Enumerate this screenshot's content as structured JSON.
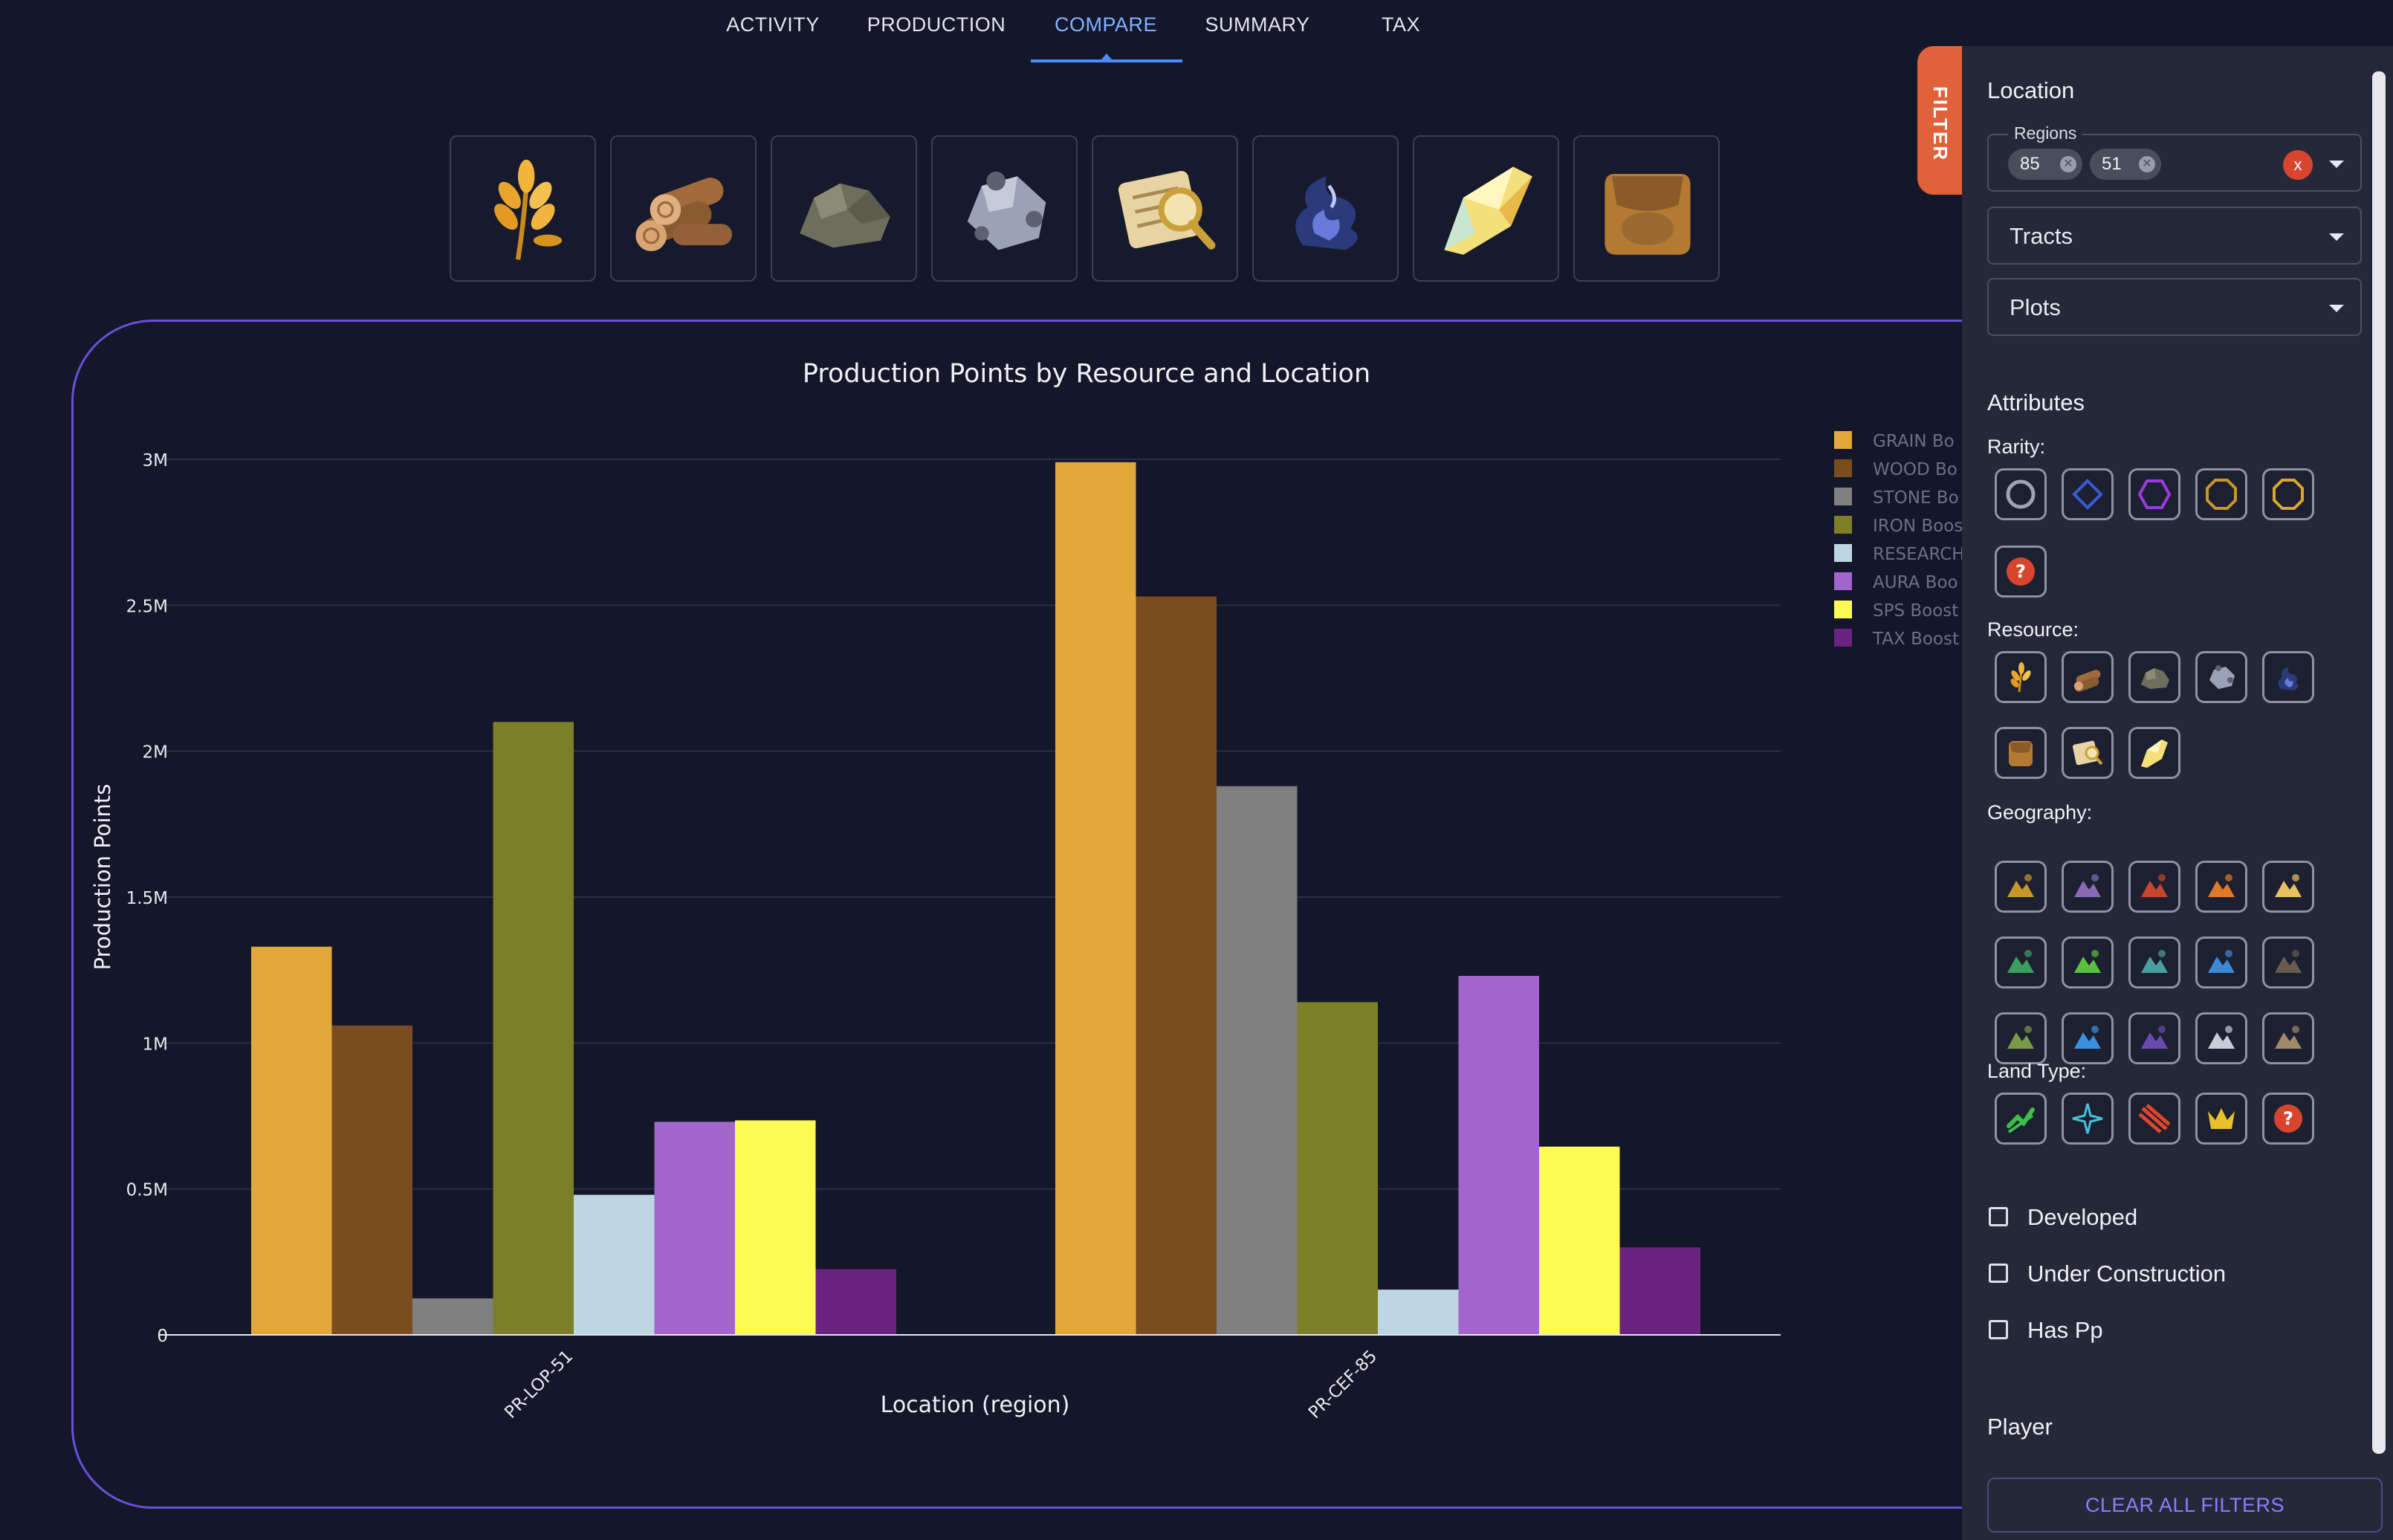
{
  "tabs": [
    {
      "label": "ACTIVITY",
      "active": false
    },
    {
      "label": "PRODUCTION",
      "active": false
    },
    {
      "label": "COMPARE",
      "active": true
    },
    {
      "label": "SUMMARY",
      "active": false
    },
    {
      "label": "TAX",
      "active": false
    }
  ],
  "resource_tiles": [
    {
      "name": "grain",
      "icon": "grain-icon"
    },
    {
      "name": "wood",
      "icon": "wood-icon"
    },
    {
      "name": "stone",
      "icon": "stone-icon"
    },
    {
      "name": "iron",
      "icon": "iron-icon"
    },
    {
      "name": "research",
      "icon": "research-icon"
    },
    {
      "name": "aura",
      "icon": "aura-icon"
    },
    {
      "name": "sps",
      "icon": "sps-icon"
    },
    {
      "name": "tax",
      "icon": "tax-icon"
    }
  ],
  "chart_data": {
    "type": "bar",
    "title": "Production Points by Resource and Location",
    "xlabel": "Location (region)",
    "ylabel": "Production Points",
    "ylim": [
      0,
      3000000
    ],
    "yticks": [
      0,
      500000,
      1000000,
      1500000,
      2000000,
      2500000,
      3000000
    ],
    "ytick_labels": [
      "0",
      "0.5M",
      "1M",
      "1.5M",
      "2M",
      "2.5M",
      "3M"
    ],
    "categories": [
      "PR-LOP-51",
      "PR-CEF-85"
    ],
    "legend_position": "right",
    "series": [
      {
        "name": "GRAIN Boost",
        "legend_label": "GRAIN Bo",
        "color": "#e2a83c",
        "values": [
          1330000,
          2990000
        ]
      },
      {
        "name": "WOOD Boost",
        "legend_label": "WOOD Bo",
        "color": "#7b4d1e",
        "values": [
          1060000,
          2530000
        ]
      },
      {
        "name": "STONE Boost",
        "legend_label": "STONE Bo",
        "color": "#808080",
        "values": [
          125000,
          1880000
        ]
      },
      {
        "name": "IRON Boost",
        "legend_label": "IRON Boos",
        "color": "#7d7f28",
        "values": [
          2100000,
          1140000
        ]
      },
      {
        "name": "RESEARCH Boost",
        "legend_label": "RESEARCH",
        "color": "#bed5e2",
        "values": [
          480000,
          155000
        ]
      },
      {
        "name": "AURA Boost",
        "legend_label": "AURA Boo",
        "color": "#a264cd",
        "values": [
          730000,
          1230000
        ]
      },
      {
        "name": "SPS Boost",
        "legend_label": "SPS Boost",
        "color": "#fbfb54",
        "values": [
          735000,
          645000
        ]
      },
      {
        "name": "TAX Boost",
        "legend_label": "TAX Boost",
        "color": "#6a2380",
        "values": [
          225000,
          300000
        ]
      }
    ]
  },
  "filter": {
    "tab_label": "FILTER",
    "location_title": "Location",
    "regions_label": "Regions",
    "region_chips": [
      "85",
      "51"
    ],
    "clear_symbol": "x",
    "tracts_label": "Tracts",
    "plots_label": "Plots",
    "attributes_title": "Attributes",
    "rarity_label": "Rarity:",
    "rarity_icons": [
      "common-rarity-icon",
      "rare-rarity-icon",
      "epic-rarity-icon",
      "legendary-rarity-icon",
      "mythic-rarity-icon",
      "unknown-rarity-icon"
    ],
    "resource_label": "Resource:",
    "resource_icons": [
      "grain-icon",
      "wood-icon",
      "stone-icon",
      "iron-icon",
      "aura-icon",
      "tax-icon",
      "research-icon",
      "sps-icon"
    ],
    "geography_label": "Geography:",
    "geography_icons": [
      "badlands-icon",
      "bog-icon",
      "caldera-icon",
      "canyon-icon",
      "desert-icon",
      "forest-icon",
      "hills-icon",
      "jungle-icon",
      "lake-icon",
      "mountain-icon",
      "plains-icon",
      "river-icon",
      "swamp-icon",
      "tundra-icon",
      "wasteland-icon"
    ],
    "landtype_label": "Land Type:",
    "landtype_icons": [
      "natural-land-icon",
      "magical-land-icon",
      "hostile-land-icon",
      "keep-land-icon",
      "unknown-land-icon"
    ],
    "checkboxes": [
      "Developed",
      "Under Construction",
      "Has Pp"
    ],
    "player_title": "Player",
    "clear_all_label": "CLEAR ALL FILTERS"
  }
}
